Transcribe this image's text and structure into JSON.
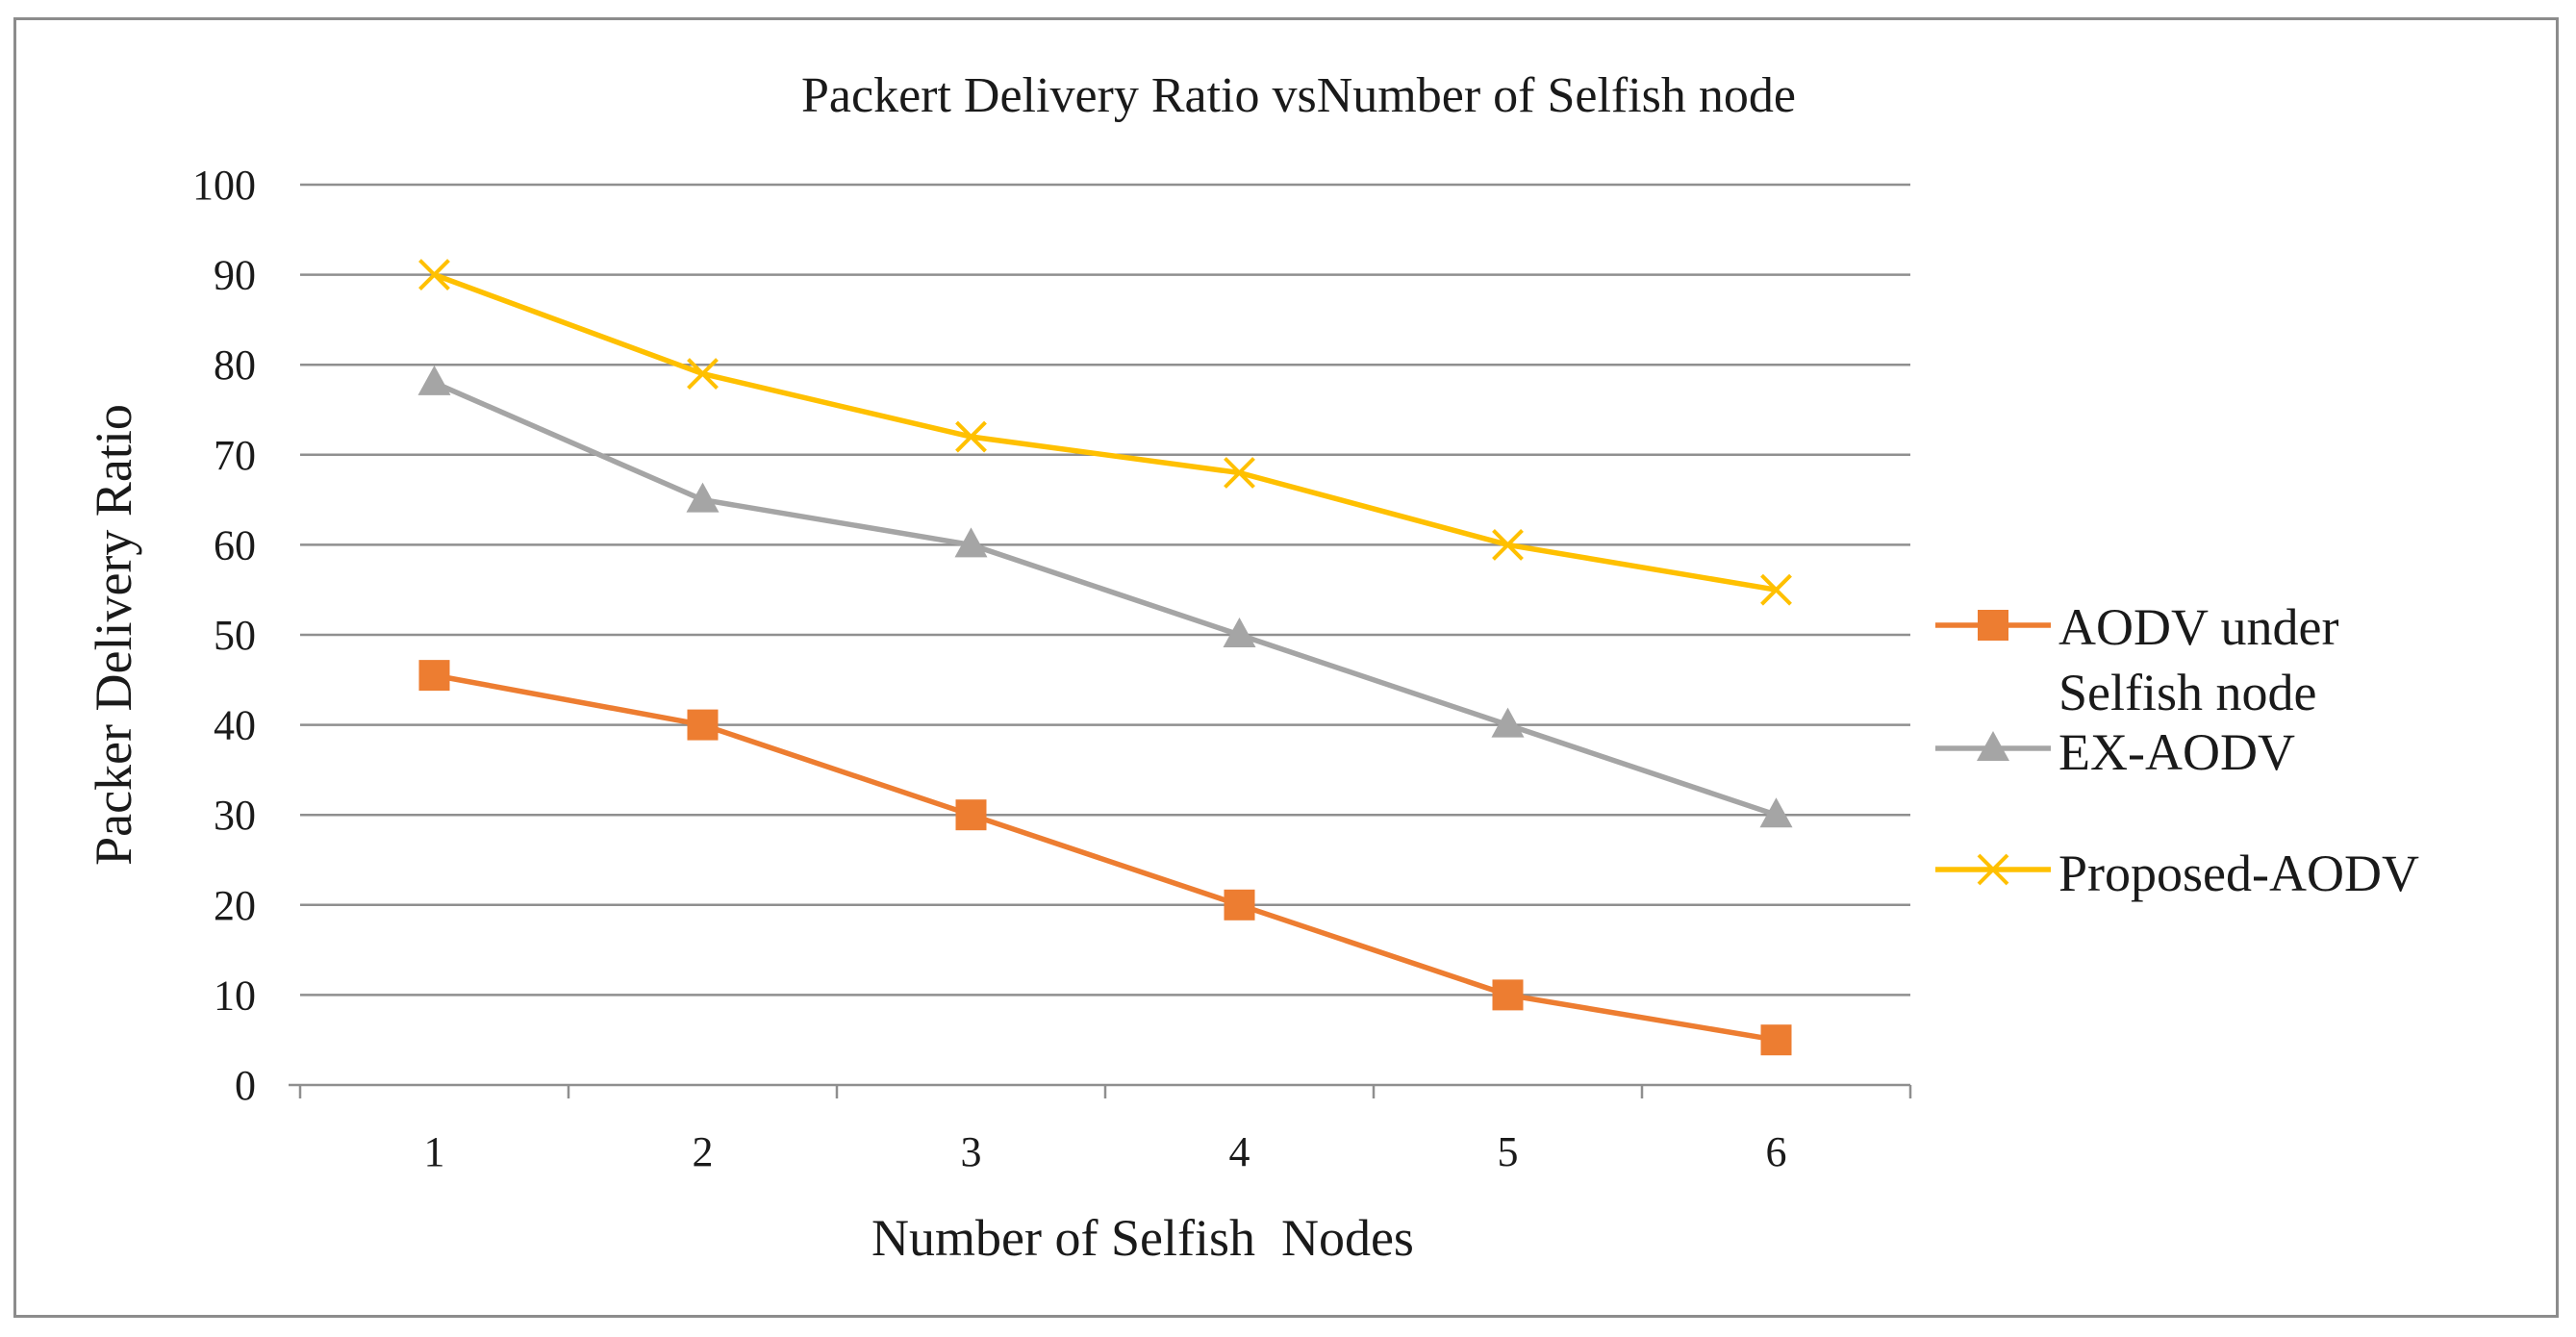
{
  "chart_data": {
    "type": "line",
    "title": "Packert Delivery Ratio vsNumber of Selfish node",
    "xlabel": "Number of Selfish  Nodes",
    "ylabel": "Packer Delivery Ratio",
    "categories": [
      "1",
      "2",
      "3",
      "4",
      "5",
      "6"
    ],
    "ylim": [
      0,
      100
    ],
    "yticks": [
      0,
      10,
      20,
      30,
      40,
      50,
      60,
      70,
      80,
      90,
      100
    ],
    "grid": true,
    "legend_position": "right",
    "series": [
      {
        "name": "AODV under Selfish node",
        "legend_lines": [
          "AODV under",
          "Selfish node"
        ],
        "values": [
          45.5,
          40,
          30,
          20,
          10,
          5
        ],
        "color": "#ed7d31",
        "marker": "square"
      },
      {
        "name": "EX-AODV",
        "legend_lines": [
          "EX-AODV"
        ],
        "values": [
          78,
          65,
          60,
          50,
          40,
          30
        ],
        "color": "#a5a5a5",
        "marker": "triangle"
      },
      {
        "name": "Proposed-AODV",
        "legend_lines": [
          "Proposed-AODV"
        ],
        "values": [
          90,
          79,
          72,
          68,
          60,
          55
        ],
        "color": "#ffc000",
        "marker": "x"
      }
    ]
  }
}
